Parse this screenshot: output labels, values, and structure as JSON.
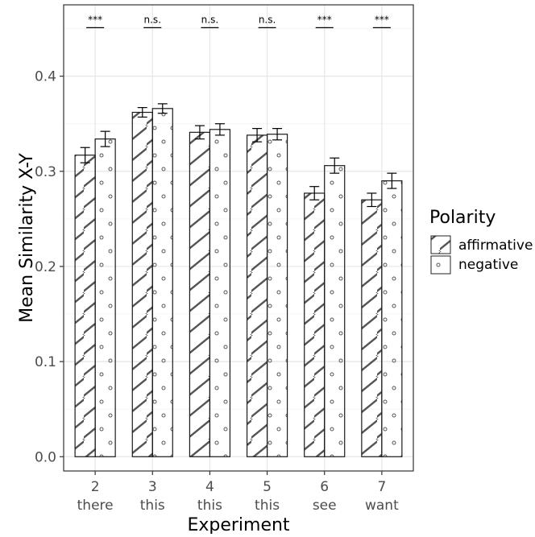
{
  "chart_data": {
    "type": "bar",
    "title": "",
    "xlabel": "Experiment",
    "ylabel": "Mean Similarity X-Y",
    "ylim": [
      -0.015,
      0.475
    ],
    "yticks": [
      0.0,
      0.1,
      0.2,
      0.3,
      0.4
    ],
    "ytick_labels": [
      "0.0",
      "0.1",
      "0.2",
      "0.3",
      "0.4"
    ],
    "grid": true,
    "legend_position": "right",
    "legend_title": "Polarity",
    "categories": [
      {
        "number": "2",
        "word": "there"
      },
      {
        "number": "3",
        "word": "this"
      },
      {
        "number": "4",
        "word": "this"
      },
      {
        "number": "5",
        "word": "this"
      },
      {
        "number": "6",
        "word": "see"
      },
      {
        "number": "7",
        "word": "want"
      }
    ],
    "series": [
      {
        "name": "affirmative",
        "pattern": "hatch",
        "values": [
          0.317,
          0.362,
          0.341,
          0.338,
          0.277,
          0.27
        ],
        "errors": [
          0.008,
          0.005,
          0.007,
          0.007,
          0.007,
          0.007
        ]
      },
      {
        "name": "negative",
        "pattern": "dots",
        "values": [
          0.334,
          0.366,
          0.344,
          0.339,
          0.306,
          0.29
        ],
        "errors": [
          0.008,
          0.005,
          0.006,
          0.006,
          0.008,
          0.008
        ]
      }
    ],
    "significance": [
      "***",
      "n.s.",
      "n.s.",
      "n.s.",
      "***",
      "***"
    ],
    "significance_y": 0.451
  }
}
